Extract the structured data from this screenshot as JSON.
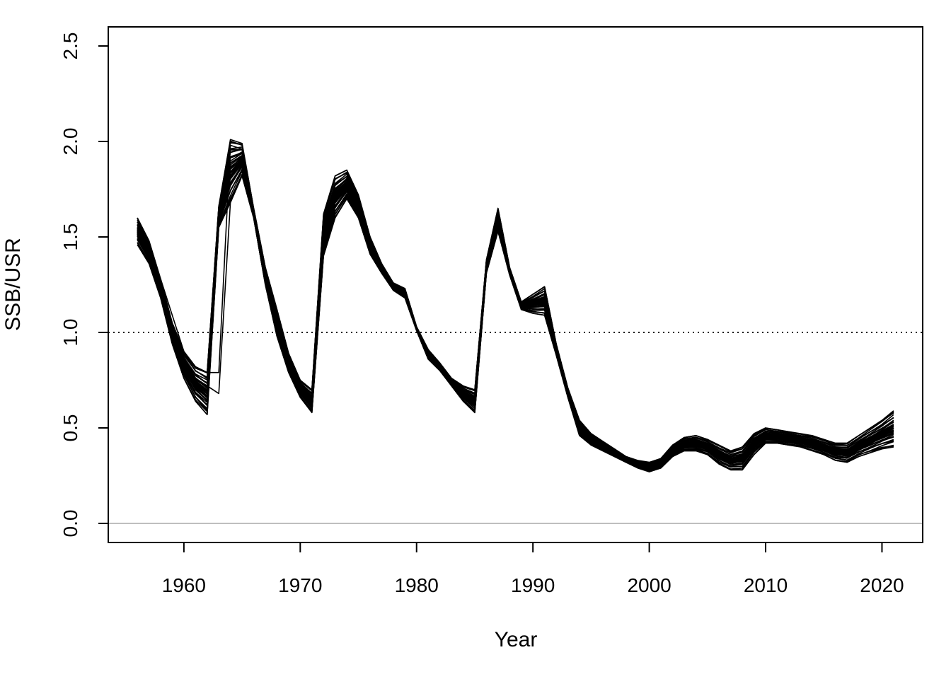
{
  "chart_data": {
    "type": "line",
    "title": "",
    "xlabel": "Year",
    "ylabel": "SSB/USR",
    "xlim": [
      1953.5,
      2023.5
    ],
    "ylim": [
      -0.1,
      2.6
    ],
    "xticks": [
      "1960",
      "1970",
      "1980",
      "1990",
      "2000",
      "2010",
      "2020"
    ],
    "yticks": [
      "0.0",
      "0.5",
      "1.0",
      "1.5",
      "2.0",
      "2.5"
    ],
    "grid": false,
    "legend": "none",
    "reference_lines": [
      {
        "y": 1.0,
        "style": "dotted",
        "color": "#000000"
      },
      {
        "y": 0.0,
        "style": "solid",
        "color": "#bebebe"
      }
    ],
    "series_style": {
      "color": "#000000",
      "count": 40
    },
    "x": [
      1956,
      1957,
      1958,
      1959,
      1960,
      1961,
      1962,
      1963,
      1964,
      1965,
      1966,
      1967,
      1968,
      1969,
      1970,
      1971,
      1972,
      1973,
      1974,
      1975,
      1976,
      1977,
      1978,
      1979,
      1980,
      1981,
      1982,
      1983,
      1984,
      1985,
      1986,
      1987,
      1988,
      1989,
      1990,
      1991,
      1992,
      1993,
      1994,
      1995,
      1996,
      1997,
      1998,
      1999,
      2000,
      2001,
      2002,
      2003,
      2004,
      2005,
      2006,
      2007,
      2008,
      2009,
      2010,
      2011,
      2012,
      2013,
      2014,
      2015,
      2016,
      2017,
      2018,
      2019,
      2020,
      2021
    ],
    "envelope_low": [
      1.46,
      1.36,
      1.18,
      0.94,
      0.76,
      0.64,
      0.57,
      1.55,
      1.68,
      1.82,
      1.6,
      1.25,
      0.98,
      0.79,
      0.66,
      0.58,
      1.4,
      1.6,
      1.7,
      1.6,
      1.41,
      1.31,
      1.22,
      1.18,
      1.01,
      0.86,
      0.8,
      0.72,
      0.64,
      0.58,
      1.31,
      1.53,
      1.3,
      1.12,
      1.1,
      1.09,
      0.88,
      0.66,
      0.46,
      0.41,
      0.38,
      0.35,
      0.32,
      0.29,
      0.27,
      0.29,
      0.35,
      0.38,
      0.38,
      0.36,
      0.31,
      0.28,
      0.28,
      0.36,
      0.42,
      0.42,
      0.41,
      0.4,
      0.38,
      0.36,
      0.33,
      0.32,
      0.35,
      0.37,
      0.39,
      0.4
    ],
    "envelope_high": [
      1.6,
      1.48,
      1.28,
      1.05,
      0.9,
      0.82,
      0.79,
      1.66,
      2.01,
      1.99,
      1.65,
      1.34,
      1.12,
      0.89,
      0.75,
      0.7,
      1.62,
      1.82,
      1.85,
      1.72,
      1.5,
      1.36,
      1.26,
      1.23,
      1.03,
      0.91,
      0.84,
      0.76,
      0.72,
      0.7,
      1.38,
      1.65,
      1.34,
      1.16,
      1.2,
      1.24,
      0.94,
      0.71,
      0.54,
      0.47,
      0.43,
      0.39,
      0.35,
      0.33,
      0.32,
      0.34,
      0.41,
      0.45,
      0.46,
      0.44,
      0.41,
      0.38,
      0.4,
      0.47,
      0.5,
      0.49,
      0.48,
      0.47,
      0.46,
      0.44,
      0.42,
      0.42,
      0.46,
      0.5,
      0.54,
      0.59
    ],
    "distinct_lines": [
      {
        "x": [
          1956,
          1958,
          1960,
          1961,
          1962,
          1963,
          1964,
          1965,
          1966
        ],
        "y": [
          1.6,
          1.28,
          0.9,
          0.82,
          0.79,
          0.79,
          1.98,
          1.96,
          1.64
        ]
      },
      {
        "x": [
          1960,
          1961,
          1962,
          1963,
          1964,
          1965,
          1966
        ],
        "y": [
          0.86,
          0.76,
          0.72,
          0.68,
          1.68,
          1.82,
          1.6
        ]
      },
      {
        "x": [
          1972,
          1973,
          1974,
          1975
        ],
        "y": [
          1.42,
          1.62,
          1.71,
          1.6
        ]
      }
    ]
  }
}
